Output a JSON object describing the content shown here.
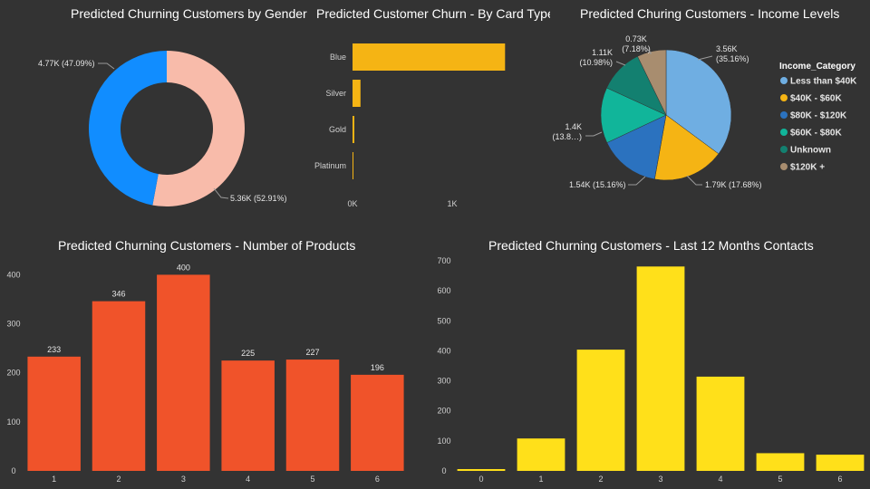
{
  "chart_data": [
    {
      "type": "donut",
      "title": "Predicted Churning Customers by Gender",
      "series": [
        {
          "value": 4.77,
          "label": "4.77K (47.09%)",
          "color": "#118DFF"
        },
        {
          "value": 5.36,
          "label": "5.36K (52.91%)",
          "color": "#F8BBAA"
        }
      ]
    },
    {
      "type": "bar",
      "orientation": "horizontal",
      "title": "Predicted Customer Churn - By Card Type",
      "categories": [
        "Blue",
        "Silver",
        "Gold",
        "Platinum"
      ],
      "values": [
        1530,
        80,
        18,
        5
      ],
      "xticks": [
        "0K",
        "1K"
      ],
      "color": "#F5B414"
    },
    {
      "type": "pie",
      "title": "Predicted Churing Customers - Income Levels",
      "slices": [
        {
          "name": "Less than $40K",
          "value": 3.56,
          "label": "3.56K (35.16%)",
          "color": "#6FAEE2"
        },
        {
          "name": "$40K - $60K",
          "value": 1.79,
          "label": "1.79K (17.68%)",
          "color": "#F5B414"
        },
        {
          "name": "$80K - $120K",
          "value": 1.54,
          "label": "1.54K (15.16%)",
          "color": "#2B72BF"
        },
        {
          "name": "$60K - $80K",
          "value": 1.4,
          "label_lines": [
            "1.4K",
            "(13.8…)"
          ],
          "color": "#11B59A"
        },
        {
          "name": "Unknown",
          "value": 1.11,
          "label_lines": [
            "1.11K",
            "(10.98%)"
          ],
          "color": "#138070"
        },
        {
          "name": "$120K +",
          "value": 0.73,
          "label_lines": [
            "0.73K",
            "(7.18%)"
          ],
          "color": "#A88D6F"
        }
      ],
      "legend_title": "Income_Category",
      "legend": [
        "Less than $40K",
        "$40K - $60K",
        "$80K - $120K",
        "$60K - $80K",
        "Unknown",
        "$120K +"
      ],
      "legend_colors": [
        "#6FAEE2",
        "#F5B414",
        "#2B72BF",
        "#11B59A",
        "#138070",
        "#A88D6F"
      ]
    },
    {
      "type": "bar",
      "title": "Predicted Churning Customers - Number of Products",
      "categories": [
        "1",
        "2",
        "3",
        "4",
        "5",
        "6"
      ],
      "values": [
        233,
        346,
        400,
        225,
        227,
        196
      ],
      "data_labels": [
        "233",
        "346",
        "400",
        "225",
        "227",
        "196"
      ],
      "yticks": [
        0,
        100,
        200,
        300,
        400
      ],
      "ylim": [
        0,
        430
      ],
      "color": "#F0532A"
    },
    {
      "type": "bar",
      "title": "Predicted Churning Customers - Last 12 Months Contacts",
      "categories": [
        "0",
        "1",
        "2",
        "3",
        "4",
        "5",
        "6"
      ],
      "values": [
        6,
        108,
        404,
        681,
        314,
        59,
        54
      ],
      "yticks": [
        0,
        100,
        200,
        300,
        400,
        500,
        600,
        700
      ],
      "ylim": [
        0,
        700
      ],
      "color": "#FFE01A"
    }
  ]
}
